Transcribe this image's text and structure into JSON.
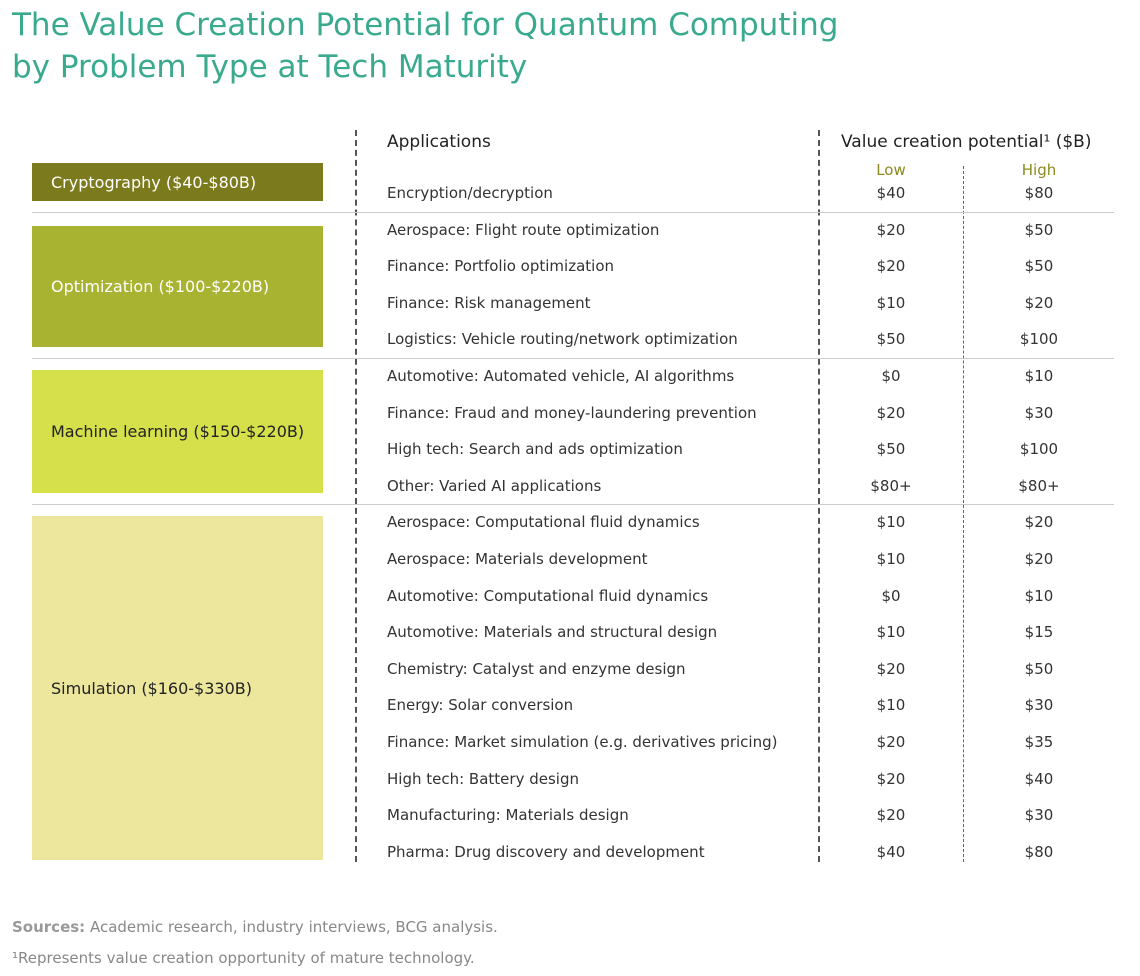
{
  "title_line1": "The Value Creation Potential for Quantum Computing",
  "title_line2": "by Problem Type at Tech Maturity",
  "chart_data": {
    "type": "table",
    "columns": {
      "applications": "Applications",
      "value": "Value creation potential¹ ($B)",
      "low": "Low",
      "high": "High"
    },
    "categories": [
      {
        "label": "Cryptography ($40-$80B)",
        "color": "#7b7a1c",
        "text_color": "#ffffff",
        "rows": [
          {
            "app": "Encryption/decryption",
            "low": "$40",
            "high": "$80"
          }
        ]
      },
      {
        "label": "Optimization ($100-$220B)",
        "color": "#a8b332",
        "text_color": "#ffffff",
        "rows": [
          {
            "app": "Aerospace: Flight route optimization",
            "low": "$20",
            "high": "$50"
          },
          {
            "app": "Finance: Portfolio optimization",
            "low": "$20",
            "high": "$50"
          },
          {
            "app": "Finance: Risk management",
            "low": "$10",
            "high": "$20"
          },
          {
            "app": "Logistics: Vehicle routing/network optimization",
            "low": "$50",
            "high": "$100"
          }
        ]
      },
      {
        "label": "Machine learning ($150-$220B)",
        "color": "#d5e04a",
        "text_color": "#222222",
        "rows": [
          {
            "app": "Automotive: Automated vehicle, AI algorithms",
            "low": "$0",
            "high": "$10"
          },
          {
            "app": "Finance: Fraud and money-laundering prevention",
            "low": "$20",
            "high": "$30"
          },
          {
            "app": "High tech: Search and ads optimization",
            "low": "$50",
            "high": "$100"
          },
          {
            "app": "Other: Varied AI applications",
            "low": "$80+",
            "high": "$80+"
          }
        ]
      },
      {
        "label": "Simulation ($160-$330B)",
        "color": "#ede79e",
        "text_color": "#222222",
        "rows": [
          {
            "app": "Aerospace: Computational fluid dynamics",
            "low": "$10",
            "high": "$20"
          },
          {
            "app": "Aerospace: Materials development",
            "low": "$10",
            "high": "$20"
          },
          {
            "app": "Automotive: Computational fluid dynamics",
            "low": "$0",
            "high": "$10"
          },
          {
            "app": "Automotive: Materials and structural design",
            "low": "$10",
            "high": "$15"
          },
          {
            "app": "Chemistry: Catalyst and enzyme design",
            "low": "$20",
            "high": "$50"
          },
          {
            "app": "Energy: Solar conversion",
            "low": "$10",
            "high": "$30"
          },
          {
            "app": "Finance: Market simulation (e.g. derivatives pricing)",
            "low": "$20",
            "high": "$35"
          },
          {
            "app": "High tech: Battery design",
            "low": "$20",
            "high": "$40"
          },
          {
            "app": "Manufacturing: Materials design",
            "low": "$20",
            "high": "$30"
          },
          {
            "app": "Pharma: Drug discovery and development",
            "low": "$40",
            "high": "$80"
          }
        ]
      }
    ]
  },
  "footer": {
    "sources_label": "Sources:",
    "sources_text": " Academic research, industry interviews, BCG analysis.",
    "footnote": "¹Represents value creation opportunity of mature technology."
  }
}
